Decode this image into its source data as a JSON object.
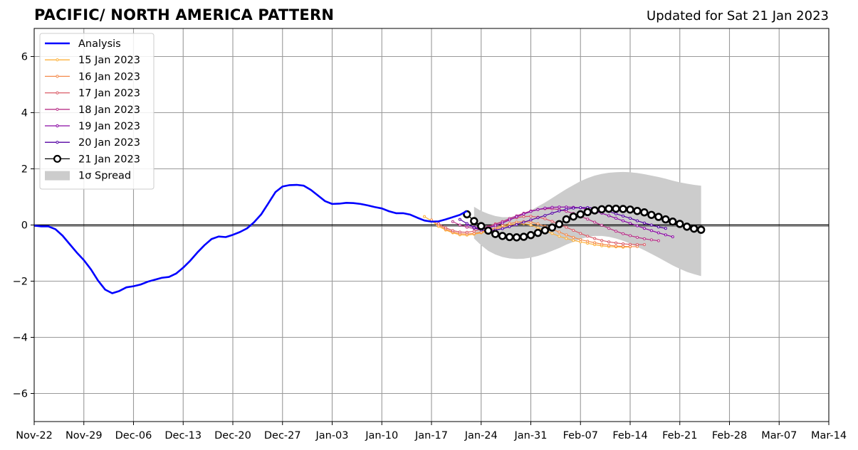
{
  "title": "PACIFIC/ NORTH AMERICA PATTERN",
  "updated": "Updated for Sat 21 Jan 2023",
  "chart_data": {
    "type": "line",
    "title": "PACIFIC/ NORTH AMERICA PATTERN",
    "xlabel": "",
    "ylabel": "",
    "xlim": [
      "2022-11-22",
      "2023-03-14"
    ],
    "ylim": [
      -7,
      7
    ],
    "grid": true,
    "legend_position": "top-left",
    "x_tick_labels": [
      "Nov-22",
      "Nov-29",
      "Dec-06",
      "Dec-13",
      "Dec-20",
      "Dec-27",
      "Jan-03",
      "Jan-10",
      "Jan-17",
      "Jan-24",
      "Jan-31",
      "Feb-07",
      "Feb-14",
      "Feb-21",
      "Feb-28",
      "Mar-07",
      "Mar-14"
    ],
    "y_ticks": [
      -6,
      -4,
      -2,
      0,
      2,
      4,
      6
    ],
    "y_tick_labels": [
      "−6",
      "−4",
      "−2",
      "0",
      "2",
      "4",
      "6"
    ],
    "analysis": {
      "name": "Analysis",
      "color": "#0000ff",
      "start": "2022-11-22",
      "values": [
        -0.02,
        -0.05,
        -0.05,
        -0.15,
        -0.38,
        -0.68,
        -0.98,
        -1.25,
        -1.58,
        -1.98,
        -2.3,
        -2.43,
        -2.35,
        -2.22,
        -2.18,
        -2.12,
        -2.02,
        -1.95,
        -1.88,
        -1.85,
        -1.73,
        -1.52,
        -1.27,
        -0.98,
        -0.72,
        -0.5,
        -0.41,
        -0.43,
        -0.35,
        -0.25,
        -0.12,
        0.1,
        0.38,
        0.77,
        1.17,
        1.37,
        1.42,
        1.43,
        1.4,
        1.25,
        1.05,
        0.85,
        0.75,
        0.76,
        0.79,
        0.78,
        0.75,
        0.7,
        0.64,
        0.59,
        0.49,
        0.42,
        0.42,
        0.37,
        0.26,
        0.16,
        0.12,
        0.13,
        0.2,
        0.28,
        0.36,
        0.5
      ]
    },
    "forecasts": [
      {
        "name": "15 Jan 2023",
        "color": "#fdb13b",
        "start": "2023-01-16",
        "values": [
          0.3,
          0.15,
          -0.05,
          -0.18,
          -0.28,
          -0.35,
          -0.36,
          -0.33,
          -0.28,
          -0.22,
          -0.15,
          -0.07,
          0.0,
          0.04,
          0.05,
          0.0,
          -0.1,
          -0.2,
          -0.3,
          -0.4,
          -0.48,
          -0.55,
          -0.6,
          -0.65,
          -0.7,
          -0.74,
          -0.77,
          -0.78,
          -0.79,
          -0.78
        ]
      },
      {
        "name": "16 Jan 2023",
        "color": "#f48a4a",
        "start": "2023-01-17",
        "values": [
          0.18,
          0.0,
          -0.15,
          -0.25,
          -0.31,
          -0.32,
          -0.3,
          -0.25,
          -0.18,
          -0.1,
          -0.02,
          0.05,
          0.1,
          0.12,
          0.1,
          0.04,
          -0.05,
          -0.15,
          -0.25,
          -0.35,
          -0.44,
          -0.52,
          -0.58,
          -0.63,
          -0.68,
          -0.72,
          -0.75,
          -0.76,
          -0.77,
          -0.77
        ]
      },
      {
        "name": "17 Jan 2023",
        "color": "#db5c68",
        "start": "2023-01-18",
        "values": [
          0.05,
          -0.1,
          -0.2,
          -0.25,
          -0.26,
          -0.22,
          -0.15,
          -0.06,
          0.04,
          0.12,
          0.2,
          0.26,
          0.3,
          0.31,
          0.28,
          0.22,
          0.13,
          0.03,
          -0.08,
          -0.19,
          -0.3,
          -0.4,
          -0.48,
          -0.55,
          -0.6,
          -0.64,
          -0.67,
          -0.69,
          -0.7,
          -0.7
        ]
      },
      {
        "name": "18 Jan 2023",
        "color": "#b83289",
        "start": "2023-01-20",
        "values": [
          0.12,
          0.0,
          -0.08,
          -0.12,
          -0.12,
          -0.07,
          0.02,
          0.12,
          0.23,
          0.33,
          0.42,
          0.5,
          0.55,
          0.58,
          0.58,
          0.55,
          0.49,
          0.41,
          0.31,
          0.21,
          0.1,
          -0.01,
          -0.12,
          -0.22,
          -0.31,
          -0.38,
          -0.44,
          -0.49,
          -0.53,
          -0.56
        ]
      },
      {
        "name": "19 Jan 2023",
        "color": "#8b0aa5",
        "start": "2023-01-22",
        "values": [
          0.02,
          -0.08,
          -0.12,
          -0.1,
          -0.03,
          0.07,
          0.18,
          0.29,
          0.39,
          0.48,
          0.55,
          0.6,
          0.63,
          0.64,
          0.64,
          0.63,
          0.61,
          0.57,
          0.5,
          0.42,
          0.33,
          0.24,
          0.15,
          0.06,
          -0.03,
          -0.12,
          -0.2,
          -0.28,
          -0.35,
          -0.42
        ]
      },
      {
        "name": "20 Jan 2023",
        "color": "#5402a3",
        "start": "2023-01-21",
        "values": [
          0.2,
          0.05,
          -0.1,
          -0.18,
          -0.2,
          -0.18,
          -0.13,
          -0.06,
          0.02,
          0.1,
          0.18,
          0.26,
          0.34,
          0.42,
          0.5,
          0.56,
          0.6,
          0.62,
          0.62,
          0.6,
          0.55,
          0.48,
          0.4,
          0.32,
          0.24,
          0.15,
          0.07,
          0.0,
          -0.07,
          -0.12
        ]
      },
      {
        "name": "21 Jan 2023",
        "color": "#000000",
        "start": "2023-01-22",
        "values": [
          0.38,
          0.14,
          -0.04,
          -0.2,
          -0.32,
          -0.39,
          -0.43,
          -0.44,
          -0.42,
          -0.36,
          -0.28,
          -0.19,
          -0.09,
          0.03,
          0.2,
          0.3,
          0.38,
          0.46,
          0.52,
          0.56,
          0.58,
          0.58,
          0.57,
          0.55,
          0.5,
          0.45,
          0.36,
          0.29,
          0.2,
          0.12,
          0.04,
          -0.06,
          -0.13,
          -0.17
        ]
      }
    ],
    "spread": {
      "name": "1σ Spread",
      "color": "#cccccc",
      "start": "2023-01-23",
      "upper": [
        0.65,
        0.5,
        0.4,
        0.32,
        0.28,
        0.28,
        0.32,
        0.4,
        0.52,
        0.66,
        0.8,
        0.96,
        1.12,
        1.28,
        1.42,
        1.56,
        1.67,
        1.76,
        1.82,
        1.86,
        1.88,
        1.89,
        1.88,
        1.85,
        1.81,
        1.76,
        1.71,
        1.65,
        1.58,
        1.52,
        1.47,
        1.43,
        1.4
      ],
      "lower": [
        -0.48,
        -0.72,
        -0.92,
        -1.05,
        -1.14,
        -1.19,
        -1.21,
        -1.2,
        -1.16,
        -1.1,
        -1.02,
        -0.92,
        -0.82,
        -0.7,
        -0.6,
        -0.5,
        -0.43,
        -0.39,
        -0.39,
        -0.42,
        -0.48,
        -0.56,
        -0.66,
        -0.78,
        -0.9,
        -1.03,
        -1.16,
        -1.3,
        -1.44,
        -1.56,
        -1.67,
        -1.75,
        -1.82
      ]
    }
  }
}
